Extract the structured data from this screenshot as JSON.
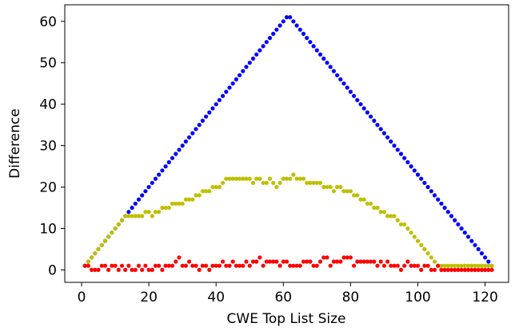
{
  "chart_data": {
    "type": "scatter",
    "title": "",
    "xlabel": "CWE Top List Size",
    "ylabel": "Difference",
    "xlim": [
      -5,
      127
    ],
    "ylim": [
      -3,
      64
    ],
    "xticks": [
      0,
      20,
      40,
      60,
      80,
      100,
      120
    ],
    "yticks": [
      0,
      10,
      20,
      30,
      40,
      50,
      60
    ],
    "grid": false,
    "legend": "none",
    "series": [
      {
        "color": "#0000ff",
        "marker": "dot",
        "x": [
          1,
          2,
          3,
          4,
          5,
          6,
          7,
          8,
          9,
          10,
          11,
          12,
          13,
          14,
          15,
          16,
          17,
          18,
          19,
          20,
          21,
          22,
          23,
          24,
          25,
          26,
          27,
          28,
          29,
          30,
          31,
          32,
          33,
          34,
          35,
          36,
          37,
          38,
          39,
          40,
          41,
          42,
          43,
          44,
          45,
          46,
          47,
          48,
          49,
          50,
          51,
          52,
          53,
          54,
          55,
          56,
          57,
          58,
          59,
          60,
          61,
          62,
          63,
          64,
          65,
          66,
          67,
          68,
          69,
          70,
          71,
          72,
          73,
          74,
          75,
          76,
          77,
          78,
          79,
          80,
          81,
          82,
          83,
          84,
          85,
          86,
          87,
          88,
          89,
          90,
          91,
          92,
          93,
          94,
          95,
          96,
          97,
          98,
          99,
          100,
          101,
          102,
          103,
          104,
          105,
          106,
          107,
          108,
          109,
          110,
          111,
          112,
          113,
          114,
          115,
          116,
          117,
          118,
          119,
          120,
          121,
          122
        ],
        "y": [
          1,
          2,
          3,
          4,
          5,
          6,
          7,
          8,
          9,
          10,
          11,
          12,
          13,
          14,
          15,
          16,
          17,
          18,
          19,
          20,
          21,
          22,
          23,
          24,
          25,
          26,
          27,
          28,
          29,
          30,
          31,
          32,
          33,
          34,
          35,
          36,
          37,
          38,
          39,
          40,
          41,
          42,
          43,
          44,
          45,
          46,
          47,
          48,
          49,
          50,
          51,
          52,
          53,
          54,
          55,
          56,
          57,
          58,
          59,
          60,
          61,
          61,
          60,
          59,
          58,
          57,
          56,
          55,
          54,
          53,
          52,
          51,
          50,
          49,
          48,
          47,
          46,
          45,
          44,
          43,
          42,
          41,
          40,
          39,
          38,
          37,
          36,
          35,
          34,
          33,
          32,
          31,
          30,
          29,
          28,
          27,
          26,
          25,
          24,
          23,
          22,
          21,
          20,
          19,
          18,
          17,
          16,
          15,
          14,
          13,
          12,
          11,
          10,
          9,
          8,
          7,
          6,
          5,
          4,
          3,
          2,
          1
        ]
      },
      {
        "color": "#bfbf00",
        "marker": "dot",
        "x": [
          1,
          2,
          3,
          4,
          5,
          6,
          7,
          8,
          9,
          10,
          11,
          12,
          13,
          14,
          15,
          16,
          17,
          18,
          19,
          20,
          21,
          22,
          23,
          24,
          25,
          26,
          27,
          28,
          29,
          30,
          31,
          32,
          33,
          34,
          35,
          36,
          37,
          38,
          39,
          40,
          41,
          42,
          43,
          44,
          45,
          46,
          47,
          48,
          49,
          50,
          51,
          52,
          53,
          54,
          55,
          56,
          57,
          58,
          59,
          60,
          61,
          62,
          63,
          64,
          65,
          66,
          67,
          68,
          69,
          70,
          71,
          72,
          73,
          74,
          75,
          76,
          77,
          78,
          79,
          80,
          81,
          82,
          83,
          84,
          85,
          86,
          87,
          88,
          89,
          90,
          91,
          92,
          93,
          94,
          95,
          96,
          97,
          98,
          99,
          100,
          101,
          102,
          103,
          104,
          105,
          106,
          107,
          108,
          109,
          110,
          111,
          112,
          113,
          114,
          115,
          116,
          117,
          118,
          119,
          120,
          121,
          122
        ],
        "y": [
          1,
          2,
          3,
          4,
          5,
          6,
          7,
          8,
          9,
          10,
          11,
          12,
          13,
          13,
          13,
          13,
          13,
          13,
          14,
          14,
          13,
          14,
          14,
          15,
          15,
          15,
          16,
          16,
          16,
          16,
          17,
          17,
          17,
          18,
          18,
          19,
          19,
          19,
          20,
          20,
          20,
          21,
          22,
          22,
          22,
          22,
          22,
          22,
          22,
          22,
          21,
          22,
          22,
          21,
          21,
          22,
          21,
          20,
          21,
          22,
          22,
          22,
          23,
          22,
          22,
          22,
          21,
          21,
          21,
          21,
          21,
          20,
          20,
          20,
          19,
          20,
          20,
          19,
          19,
          19,
          18,
          18,
          17,
          17,
          16,
          16,
          15,
          15,
          14,
          14,
          13,
          13,
          13,
          12,
          11,
          11,
          10,
          9,
          8,
          7,
          6,
          5,
          4,
          3,
          2,
          1,
          1,
          1,
          1,
          1,
          1,
          1,
          1,
          1,
          1,
          1,
          1,
          1,
          1,
          1,
          1,
          1
        ]
      },
      {
        "color": "#ff0000",
        "marker": "dot",
        "x": [
          1,
          2,
          3,
          4,
          5,
          6,
          7,
          8,
          9,
          10,
          11,
          12,
          13,
          14,
          15,
          16,
          17,
          18,
          19,
          20,
          21,
          22,
          23,
          24,
          25,
          26,
          27,
          28,
          29,
          30,
          31,
          32,
          33,
          34,
          35,
          36,
          37,
          38,
          39,
          40,
          41,
          42,
          43,
          44,
          45,
          46,
          47,
          48,
          49,
          50,
          51,
          52,
          53,
          54,
          55,
          56,
          57,
          58,
          59,
          60,
          61,
          62,
          63,
          64,
          65,
          66,
          67,
          68,
          69,
          70,
          71,
          72,
          73,
          74,
          75,
          76,
          77,
          78,
          79,
          80,
          81,
          82,
          83,
          84,
          85,
          86,
          87,
          88,
          89,
          90,
          91,
          92,
          93,
          94,
          95,
          96,
          97,
          98,
          99,
          100,
          101,
          102,
          103,
          104,
          105,
          106,
          107,
          108,
          109,
          110,
          111,
          112,
          113,
          114,
          115,
          116,
          117,
          118,
          119,
          120,
          121,
          122
        ],
        "y": [
          1,
          1,
          0,
          0,
          0,
          1,
          1,
          0,
          1,
          1,
          0,
          1,
          0,
          1,
          0,
          0,
          1,
          0,
          1,
          0,
          0,
          1,
          1,
          0,
          1,
          1,
          1,
          2,
          3,
          1,
          1,
          2,
          1,
          1,
          0,
          1,
          1,
          0,
          1,
          1,
          1,
          2,
          1,
          1,
          2,
          1,
          1,
          1,
          2,
          1,
          2,
          2,
          3,
          1,
          2,
          2,
          2,
          2,
          1,
          2,
          2,
          1,
          1,
          1,
          1,
          2,
          2,
          2,
          1,
          1,
          2,
          3,
          3,
          1,
          2,
          2,
          2,
          3,
          3,
          3,
          1,
          2,
          2,
          2,
          2,
          2,
          2,
          1,
          2,
          1,
          2,
          1,
          1,
          1,
          0,
          1,
          2,
          1,
          1,
          1,
          0,
          1,
          1,
          0,
          0,
          1,
          0,
          0,
          0,
          0,
          0,
          0,
          0,
          0,
          0,
          0,
          0,
          0,
          0,
          0,
          0,
          0
        ]
      }
    ]
  }
}
